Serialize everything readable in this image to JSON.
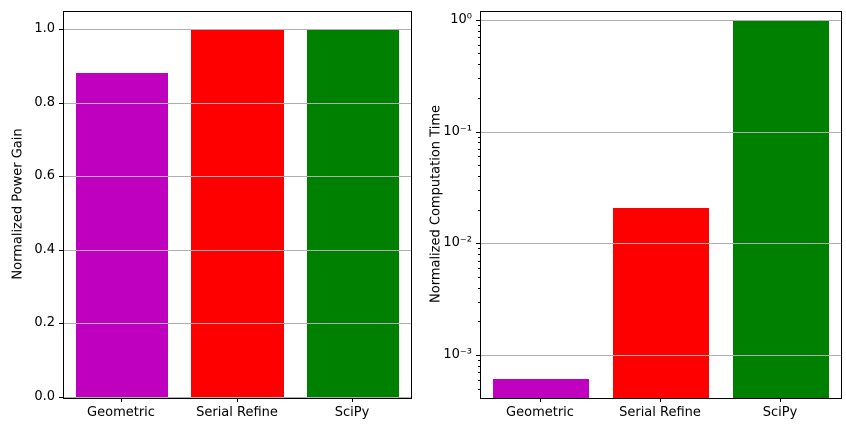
{
  "figure": {
    "background": "#ffffff",
    "grid_color": "#b0b0b0",
    "axis_color": "#000000"
  },
  "chart_data": [
    {
      "type": "bar",
      "title": "",
      "xlabel": "",
      "ylabel": "Normalized Power Gain",
      "categories": [
        "Geometric",
        "Serial Refine",
        "SciPy"
      ],
      "values": [
        0.885,
        1.0,
        1.0
      ],
      "bar_colors": [
        "#bf00bf",
        "#ff0000",
        "#008000"
      ],
      "yscale": "linear",
      "ylim": [
        0,
        1.05
      ],
      "yticks": [
        0.0,
        0.2,
        0.4,
        0.6,
        0.8,
        1.0
      ],
      "ytick_labels": [
        "0.0",
        "0.2",
        "0.4",
        "0.6",
        "0.8",
        "1.0"
      ],
      "grid": true,
      "legend": false,
      "bar_width_frac": 0.8
    },
    {
      "type": "bar",
      "title": "",
      "xlabel": "",
      "ylabel": "Normalized Computation Time",
      "categories": [
        "Geometric",
        "Serial Refine",
        "SciPy"
      ],
      "values": [
        0.00062,
        0.021,
        1.0
      ],
      "bar_colors": [
        "#bf00bf",
        "#ff0000",
        "#008000"
      ],
      "yscale": "log",
      "ylim": [
        0.00042,
        1.2
      ],
      "yticks": [
        1,
        0.1,
        0.01,
        0.001
      ],
      "ytick_labels": [
        "10⁰",
        "10⁻¹",
        "10⁻²",
        "10⁻³"
      ],
      "grid": true,
      "legend": false,
      "bar_width_frac": 0.8
    }
  ]
}
